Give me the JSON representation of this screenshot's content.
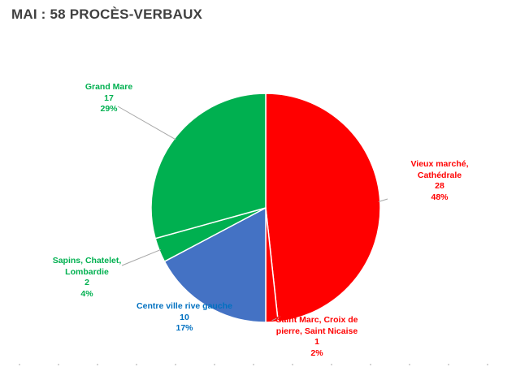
{
  "title": "MAI : 58 PROCÈS-VERBAUX",
  "chart_data": {
    "type": "pie",
    "title": "MAI : 58 PROCÈS-VERBAUX",
    "total": 58,
    "slices": [
      {
        "label": "Vieux marché, Cathédrale",
        "label_lines": [
          "Vieux marché,",
          "Cathédrale"
        ],
        "value": 28,
        "percent_label": "48%",
        "color": "#ff0000"
      },
      {
        "label": "Saint Marc, Croix de pierre, Saint Nicaise",
        "label_lines": [
          "Saint Marc, Croix de",
          "pierre, Saint Nicaise"
        ],
        "value": 1,
        "percent_label": "2%",
        "color": "#ff0000"
      },
      {
        "label": "Centre ville rive gauche",
        "label_lines": [
          "Centre ville rive gauche"
        ],
        "value": 10,
        "percent_label": "17%",
        "color": "#4472c4"
      },
      {
        "label": "Sapins, Chatelet, Lombardie",
        "label_lines": [
          "Sapins, Chatelet,",
          "Lombardie"
        ],
        "value": 2,
        "percent_label": "4%",
        "color": "#00b050"
      },
      {
        "label": "Grand Mare",
        "label_lines": [
          "Grand Mare"
        ],
        "value": 17,
        "percent_label": "29%",
        "color": "#00b050"
      }
    ],
    "label_colors": {
      "red": "#ff0000",
      "blue": "#0070c0",
      "green": "#00b050"
    }
  }
}
